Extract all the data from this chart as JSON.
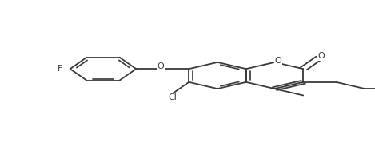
{
  "bg_color": "#ffffff",
  "line_color": "#3a3a3a",
  "lw": 1.3,
  "bl": 0.088,
  "labels": {
    "O_ring": "O",
    "O_carbonyl": "O",
    "O_ether": "O",
    "F": "F",
    "Cl": "Cl"
  },
  "label_fontsize": 8
}
